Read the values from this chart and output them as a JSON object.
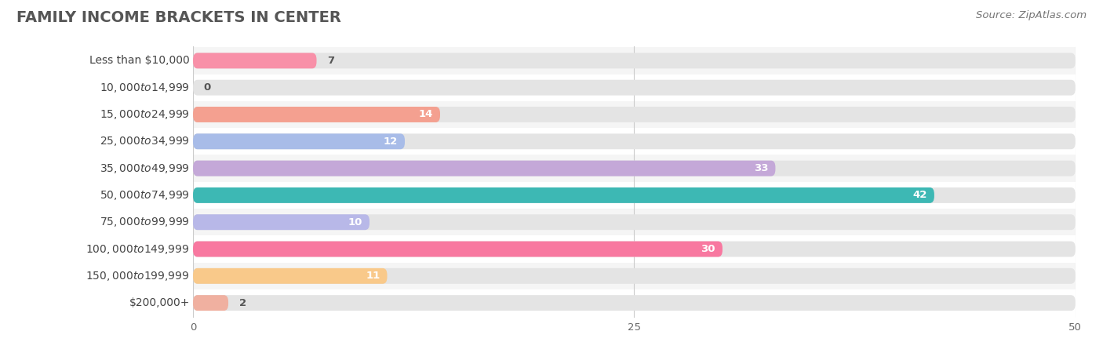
{
  "title": "FAMILY INCOME BRACKETS IN CENTER",
  "source": "Source: ZipAtlas.com",
  "categories": [
    "Less than $10,000",
    "$10,000 to $14,999",
    "$15,000 to $24,999",
    "$25,000 to $34,999",
    "$35,000 to $49,999",
    "$50,000 to $74,999",
    "$75,000 to $99,999",
    "$100,000 to $149,999",
    "$150,000 to $199,999",
    "$200,000+"
  ],
  "values": [
    7,
    0,
    14,
    12,
    33,
    42,
    10,
    30,
    11,
    2
  ],
  "bar_colors": [
    "#f890a8",
    "#f9c98a",
    "#f4a090",
    "#a8bce8",
    "#c4a8d8",
    "#3db8b4",
    "#b8b8e8",
    "#f878a0",
    "#f9c98a",
    "#f0b0a0"
  ],
  "background_color": "#ffffff",
  "row_alt_color": "#f5f5f5",
  "bar_bg_color": "#e4e4e4",
  "xlim": [
    0,
    50
  ],
  "xticks": [
    0,
    25,
    50
  ],
  "bar_height": 0.58,
  "title_fontsize": 14,
  "label_fontsize": 10,
  "value_fontsize": 9.5,
  "source_fontsize": 9.5,
  "value_inside_threshold": 10
}
